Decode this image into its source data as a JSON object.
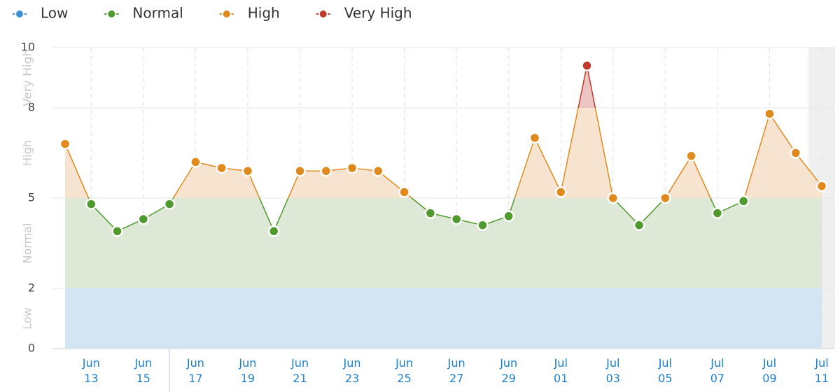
{
  "chart_data": {
    "type": "line",
    "categories": [
      null,
      "Jun 13",
      null,
      "Jun 15",
      null,
      "Jun 17",
      null,
      "Jun 19",
      null,
      "Jun 21",
      null,
      "Jun 23",
      null,
      "Jun 25",
      null,
      "Jun 27",
      null,
      "Jun 29",
      null,
      "Jul 01",
      null,
      "Jul 03",
      null,
      "Jul 05",
      null,
      "Jul 07",
      null,
      "Jul 09",
      null,
      "Jul 11"
    ],
    "values": [
      6.8,
      4.8,
      3.9,
      4.3,
      4.8,
      6.2,
      6.0,
      5.9,
      3.9,
      5.9,
      5.9,
      6.0,
      5.9,
      5.2,
      4.5,
      4.3,
      4.1,
      4.4,
      7.0,
      5.2,
      9.4,
      5.0,
      4.1,
      5.0,
      6.4,
      4.5,
      4.9,
      7.8,
      6.5,
      5.4
    ],
    "bands": [
      {
        "name": "Low",
        "range": [
          0,
          2
        ],
        "color": "#3a8fd6",
        "fill": "#d3e5f2"
      },
      {
        "name": "Normal",
        "range": [
          2,
          5
        ],
        "color": "#4f9a2e",
        "fill": "#dde9d6"
      },
      {
        "name": "High",
        "range": [
          5,
          8
        ],
        "color": "#e08a1e",
        "fill": "#f7e4d0"
      },
      {
        "name": "Very High",
        "range": [
          8,
          10
        ],
        "color": "#c0392b",
        "fill": "#eac5c1"
      }
    ],
    "ylim": [
      0,
      10
    ],
    "yticks": [
      0,
      2,
      5,
      8,
      10
    ],
    "grid": true
  }
}
